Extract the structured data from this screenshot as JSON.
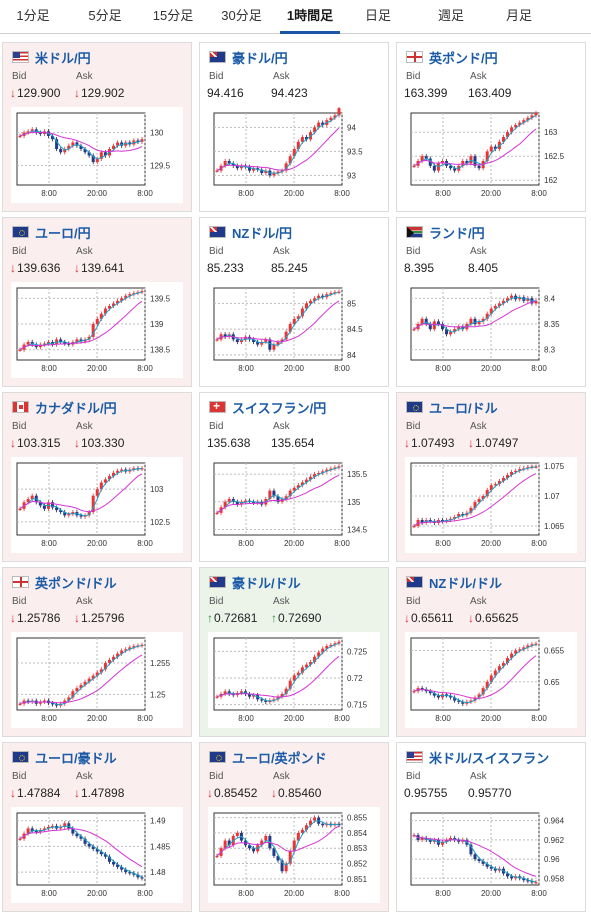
{
  "tabs": [
    {
      "label": "1分足"
    },
    {
      "label": "5分足"
    },
    {
      "label": "15分足"
    },
    {
      "label": "30分足"
    },
    {
      "label": "1時間足",
      "active": true
    },
    {
      "label": "日足"
    },
    {
      "label": "週足"
    },
    {
      "label": "月足"
    }
  ],
  "labels": {
    "bid": "Bid",
    "ask": "Ask"
  },
  "colors": {
    "down": "#d4302d",
    "up": "#2f8f3a",
    "link": "#1a5aa6",
    "tab_active": "#1b56a8",
    "ma_short": "#18a0c8",
    "ma_long": "#d633d6"
  },
  "pairs": [
    {
      "name": "米ドル/円",
      "flag": "us",
      "dir": "down",
      "bid_arrow": "↓",
      "ask_arrow": "↓",
      "bid": "129.900",
      "ask": "129.902",
      "chart_data": {
        "type": "candlestick",
        "yticks": [
          "130",
          "129.5"
        ],
        "xticks": [
          "8:00",
          "20:00",
          "8:00"
        ],
        "ylim": [
          129.2,
          130.3
        ],
        "closes": [
          129.95,
          130.0,
          130.02,
          130.05,
          130.0,
          129.98,
          130.02,
          129.95,
          129.9,
          129.75,
          129.7,
          129.75,
          129.8,
          129.85,
          129.8,
          129.75,
          129.7,
          129.65,
          129.55,
          129.6,
          129.7,
          129.65,
          129.75,
          129.8,
          129.85,
          129.8,
          129.85,
          129.82,
          129.88,
          129.86,
          129.9
        ]
      }
    },
    {
      "name": "豪ドル/円",
      "flag": "au",
      "dir": "flat",
      "bid_arrow": "",
      "ask_arrow": "",
      "bid": "94.416",
      "ask": "94.423",
      "chart_data": {
        "type": "candlestick",
        "yticks": [
          "94",
          "93.5",
          "93"
        ],
        "xticks": [
          "8:00",
          "20:00",
          "8:00"
        ],
        "ylim": [
          92.8,
          94.3
        ],
        "closes": [
          93.1,
          93.2,
          93.3,
          93.25,
          93.2,
          93.15,
          93.2,
          93.18,
          93.1,
          93.15,
          93.12,
          93.05,
          93.1,
          93.0,
          93.05,
          93.08,
          93.1,
          93.25,
          93.4,
          93.55,
          93.7,
          93.8,
          93.75,
          93.9,
          94.0,
          94.1,
          94.05,
          94.15,
          94.2,
          94.25,
          94.4
        ]
      }
    },
    {
      "name": "英ポンド/円",
      "flag": "gb",
      "dir": "flat",
      "bid_arrow": "",
      "ask_arrow": "",
      "bid": "163.399",
      "ask": "163.409",
      "chart_data": {
        "type": "candlestick",
        "yticks": [
          "163",
          "162.5",
          "162"
        ],
        "xticks": [
          "8:00",
          "20:00",
          "8:00"
        ],
        "ylim": [
          161.9,
          163.4
        ],
        "closes": [
          162.3,
          162.4,
          162.5,
          162.45,
          162.3,
          162.2,
          162.35,
          162.4,
          162.3,
          162.25,
          162.2,
          162.3,
          162.4,
          162.35,
          162.5,
          162.3,
          162.25,
          162.4,
          162.6,
          162.7,
          162.65,
          162.8,
          162.9,
          163.0,
          163.1,
          163.15,
          163.2,
          163.25,
          163.3,
          163.35,
          163.4
        ]
      }
    },
    {
      "name": "ユーロ/円",
      "flag": "eu",
      "dir": "down",
      "bid_arrow": "↓",
      "ask_arrow": "↓",
      "bid": "139.636",
      "ask": "139.641",
      "chart_data": {
        "type": "candlestick",
        "yticks": [
          "139.5",
          "139",
          "138.5"
        ],
        "xticks": [
          "8:00",
          "20:00",
          "8:00"
        ],
        "ylim": [
          138.3,
          139.7
        ],
        "closes": [
          138.5,
          138.6,
          138.65,
          138.6,
          138.55,
          138.6,
          138.62,
          138.65,
          138.6,
          138.7,
          138.65,
          138.62,
          138.6,
          138.65,
          138.7,
          138.66,
          138.7,
          138.75,
          139.0,
          139.1,
          139.2,
          139.3,
          139.35,
          139.4,
          139.45,
          139.5,
          139.55,
          139.58,
          139.6,
          139.62,
          139.64
        ]
      }
    },
    {
      "name": "NZドル/円",
      "flag": "nz",
      "dir": "flat",
      "bid_arrow": "",
      "ask_arrow": "",
      "bid": "85.233",
      "ask": "85.245",
      "chart_data": {
        "type": "candlestick",
        "yticks": [
          "85",
          "84.5",
          "84"
        ],
        "xticks": [
          "8:00",
          "20:00",
          "8:00"
        ],
        "ylim": [
          83.9,
          85.3
        ],
        "closes": [
          84.3,
          84.4,
          84.35,
          84.4,
          84.3,
          84.25,
          84.3,
          84.35,
          84.3,
          84.25,
          84.2,
          84.25,
          84.3,
          84.1,
          84.2,
          84.25,
          84.3,
          84.45,
          84.6,
          84.7,
          84.75,
          84.9,
          85.0,
          85.05,
          85.1,
          85.15,
          85.12,
          85.18,
          85.2,
          85.22,
          85.23
        ]
      }
    },
    {
      "name": "ランド/円",
      "flag": "za",
      "dir": "flat",
      "bid_arrow": "",
      "ask_arrow": "",
      "bid": "8.395",
      "ask": "8.405",
      "chart_data": {
        "type": "candlestick",
        "yticks": [
          "8.4",
          "8.35",
          "8.3"
        ],
        "xticks": [
          "8:00",
          "20:00",
          "8:00"
        ],
        "ylim": [
          8.28,
          8.42
        ],
        "closes": [
          8.34,
          8.35,
          8.36,
          8.35,
          8.34,
          8.355,
          8.35,
          8.34,
          8.33,
          8.335,
          8.34,
          8.345,
          8.34,
          8.35,
          8.36,
          8.35,
          8.355,
          8.36,
          8.37,
          8.38,
          8.385,
          8.39,
          8.395,
          8.4,
          8.405,
          8.398,
          8.402,
          8.395,
          8.4,
          8.39,
          8.395
        ]
      }
    },
    {
      "name": "カナダドル/円",
      "flag": "ca",
      "dir": "down",
      "bid_arrow": "↓",
      "ask_arrow": "↓",
      "bid": "103.315",
      "ask": "103.330",
      "chart_data": {
        "type": "candlestick",
        "yticks": [
          "103",
          "102.5"
        ],
        "xticks": [
          "8:00",
          "20:00",
          "8:00"
        ],
        "ylim": [
          102.3,
          103.4
        ],
        "closes": [
          102.7,
          102.8,
          102.85,
          102.9,
          102.8,
          102.75,
          102.7,
          102.8,
          102.72,
          102.68,
          102.65,
          102.6,
          102.62,
          102.65,
          102.6,
          102.58,
          102.6,
          102.65,
          102.9,
          103.0,
          103.1,
          103.15,
          103.2,
          103.25,
          103.28,
          103.3,
          103.27,
          103.3,
          103.32,
          103.31,
          103.32
        ]
      }
    },
    {
      "name": "スイスフラン/円",
      "flag": "ch",
      "dir": "flat",
      "bid_arrow": "",
      "ask_arrow": "",
      "bid": "135.638",
      "ask": "135.654",
      "chart_data": {
        "type": "candlestick",
        "yticks": [
          "135.5",
          "135",
          "134.5"
        ],
        "xticks": [
          "8:00",
          "20:00",
          "8:00"
        ],
        "ylim": [
          134.4,
          135.7
        ],
        "closes": [
          134.8,
          134.9,
          135.0,
          135.05,
          135.0,
          134.95,
          135.0,
          135.02,
          135.0,
          134.98,
          135.0,
          134.95,
          135.05,
          135.2,
          135.1,
          135.0,
          135.05,
          135.1,
          135.2,
          135.25,
          135.3,
          135.35,
          135.4,
          135.45,
          135.5,
          135.52,
          135.55,
          135.58,
          135.6,
          135.62,
          135.64
        ]
      }
    },
    {
      "name": "ユーロ/ドル",
      "flag": "eu",
      "dir": "down",
      "bid_arrow": "↓",
      "ask_arrow": "↓",
      "bid": "1.07493",
      "ask": "1.07497",
      "chart_data": {
        "type": "candlestick",
        "yticks": [
          "1.075",
          "1.07",
          "1.065"
        ],
        "xticks": [
          "8:00",
          "20:00",
          "8:00"
        ],
        "ylim": [
          1.0635,
          1.0755
        ],
        "closes": [
          1.065,
          1.066,
          1.0655,
          1.066,
          1.0658,
          1.0655,
          1.066,
          1.0658,
          1.066,
          1.0662,
          1.0665,
          1.067,
          1.0668,
          1.0672,
          1.068,
          1.069,
          1.0695,
          1.07,
          1.071,
          1.0718,
          1.072,
          1.0725,
          1.073,
          1.0735,
          1.074,
          1.0742,
          1.0745,
          1.0746,
          1.0748,
          1.0749,
          1.0749
        ]
      }
    },
    {
      "name": "英ポンド/ドル",
      "flag": "gb",
      "dir": "down",
      "bid_arrow": "↓",
      "ask_arrow": "↓",
      "bid": "1.25786",
      "ask": "1.25796",
      "chart_data": {
        "type": "candlestick",
        "yticks": [
          "1.255",
          "1.25"
        ],
        "xticks": [
          "8:00",
          "20:00",
          "8:00"
        ],
        "ylim": [
          1.2475,
          1.259
        ],
        "closes": [
          1.2485,
          1.249,
          1.2488,
          1.249,
          1.2485,
          1.2488,
          1.249,
          1.2486,
          1.2484,
          1.2482,
          1.2485,
          1.249,
          1.2495,
          1.2505,
          1.251,
          1.2515,
          1.252,
          1.2525,
          1.253,
          1.2535,
          1.254,
          1.255,
          1.2555,
          1.256,
          1.2565,
          1.257,
          1.2572,
          1.2575,
          1.2577,
          1.2578,
          1.2579
        ]
      }
    },
    {
      "name": "豪ドル/ドル",
      "flag": "au",
      "dir": "up",
      "bid_arrow": "↑",
      "ask_arrow": "↑",
      "bid": "0.72681",
      "ask": "0.72690",
      "chart_data": {
        "type": "candlestick",
        "yticks": [
          "0.725",
          "0.72",
          "0.715"
        ],
        "xticks": [
          "8:00",
          "20:00",
          "8:00"
        ],
        "ylim": [
          0.714,
          0.7275
        ],
        "closes": [
          0.7165,
          0.717,
          0.7175,
          0.717,
          0.7168,
          0.7172,
          0.7175,
          0.717,
          0.7165,
          0.7168,
          0.716,
          0.7158,
          0.7155,
          0.7158,
          0.716,
          0.7165,
          0.717,
          0.718,
          0.7195,
          0.7205,
          0.721,
          0.722,
          0.7225,
          0.723,
          0.724,
          0.7248,
          0.7255,
          0.726,
          0.7262,
          0.7265,
          0.7268
        ]
      }
    },
    {
      "name": "NZドル/ドル",
      "flag": "nz",
      "dir": "down",
      "bid_arrow": "↓",
      "ask_arrow": "↓",
      "bid": "0.65611",
      "ask": "0.65625",
      "chart_data": {
        "type": "candlestick",
        "yticks": [
          "0.655",
          "0.65"
        ],
        "xticks": [
          "8:00",
          "20:00",
          "8:00"
        ],
        "ylim": [
          0.6455,
          0.657
        ],
        "closes": [
          0.6485,
          0.649,
          0.6488,
          0.6485,
          0.6482,
          0.6478,
          0.6475,
          0.648,
          0.6478,
          0.6475,
          0.647,
          0.6468,
          0.6465,
          0.6468,
          0.647,
          0.6475,
          0.648,
          0.649,
          0.65,
          0.651,
          0.6518,
          0.6525,
          0.653,
          0.6538,
          0.6545,
          0.655,
          0.6552,
          0.6555,
          0.6558,
          0.656,
          0.6561
        ]
      }
    },
    {
      "name": "ユーロ/豪ドル",
      "flag": "eu",
      "dir": "down",
      "bid_arrow": "↓",
      "ask_arrow": "↓",
      "bid": "1.47884",
      "ask": "1.47898",
      "chart_data": {
        "type": "candlestick",
        "yticks": [
          "1.49",
          "1.485",
          "1.48"
        ],
        "xticks": [
          "8:00",
          "20:00",
          "8:00"
        ],
        "ylim": [
          1.4775,
          1.4915
        ],
        "closes": [
          1.4865,
          1.4875,
          1.4885,
          1.488,
          1.4878,
          1.4882,
          1.4885,
          1.4888,
          1.489,
          1.4885,
          1.4888,
          1.4895,
          1.4885,
          1.4875,
          1.487,
          1.4865,
          1.4855,
          1.485,
          1.4845,
          1.484,
          1.4835,
          1.483,
          1.482,
          1.4815,
          1.481,
          1.4805,
          1.48,
          1.4798,
          1.4795,
          1.479,
          1.4788
        ]
      }
    },
    {
      "name": "ユーロ/英ポンド",
      "flag": "eu",
      "dir": "down",
      "bid_arrow": "↓",
      "ask_arrow": "↓",
      "bid": "0.85452",
      "ask": "0.85460",
      "chart_data": {
        "type": "candlestick",
        "yticks": [
          "0.855",
          "0.854",
          "0.853",
          "0.852",
          "0.851"
        ],
        "xticks": [
          "8:00",
          "20:00",
          "8:00"
        ],
        "ylim": [
          0.8506,
          0.8553
        ],
        "closes": [
          0.8525,
          0.853,
          0.8535,
          0.8532,
          0.8538,
          0.854,
          0.8535,
          0.8532,
          0.853,
          0.8528,
          0.8532,
          0.8535,
          0.8538,
          0.853,
          0.8525,
          0.8522,
          0.8515,
          0.852,
          0.8528,
          0.8535,
          0.854,
          0.8542,
          0.8545,
          0.8548,
          0.855,
          0.8546,
          0.8545,
          0.8546,
          0.8545,
          0.8546,
          0.8545
        ]
      }
    },
    {
      "name": "米ドル/スイスフラン",
      "flag": "us",
      "dir": "flat",
      "bid_arrow": "",
      "ask_arrow": "",
      "bid": "0.95755",
      "ask": "0.95770",
      "chart_data": {
        "type": "candlestick",
        "yticks": [
          "0.964",
          "0.962",
          "0.96",
          "0.958"
        ],
        "xticks": [
          "8:00",
          "20:00",
          "8:00"
        ],
        "ylim": [
          0.9573,
          0.9648
        ],
        "closes": [
          0.9625,
          0.962,
          0.9622,
          0.962,
          0.9618,
          0.962,
          0.9615,
          0.9618,
          0.962,
          0.9622,
          0.962,
          0.9618,
          0.962,
          0.9615,
          0.9605,
          0.96,
          0.9598,
          0.9595,
          0.9592,
          0.959,
          0.9588,
          0.959,
          0.9585,
          0.9582,
          0.958,
          0.9582,
          0.958,
          0.9578,
          0.9577,
          0.9576,
          0.9576
        ]
      }
    }
  ]
}
